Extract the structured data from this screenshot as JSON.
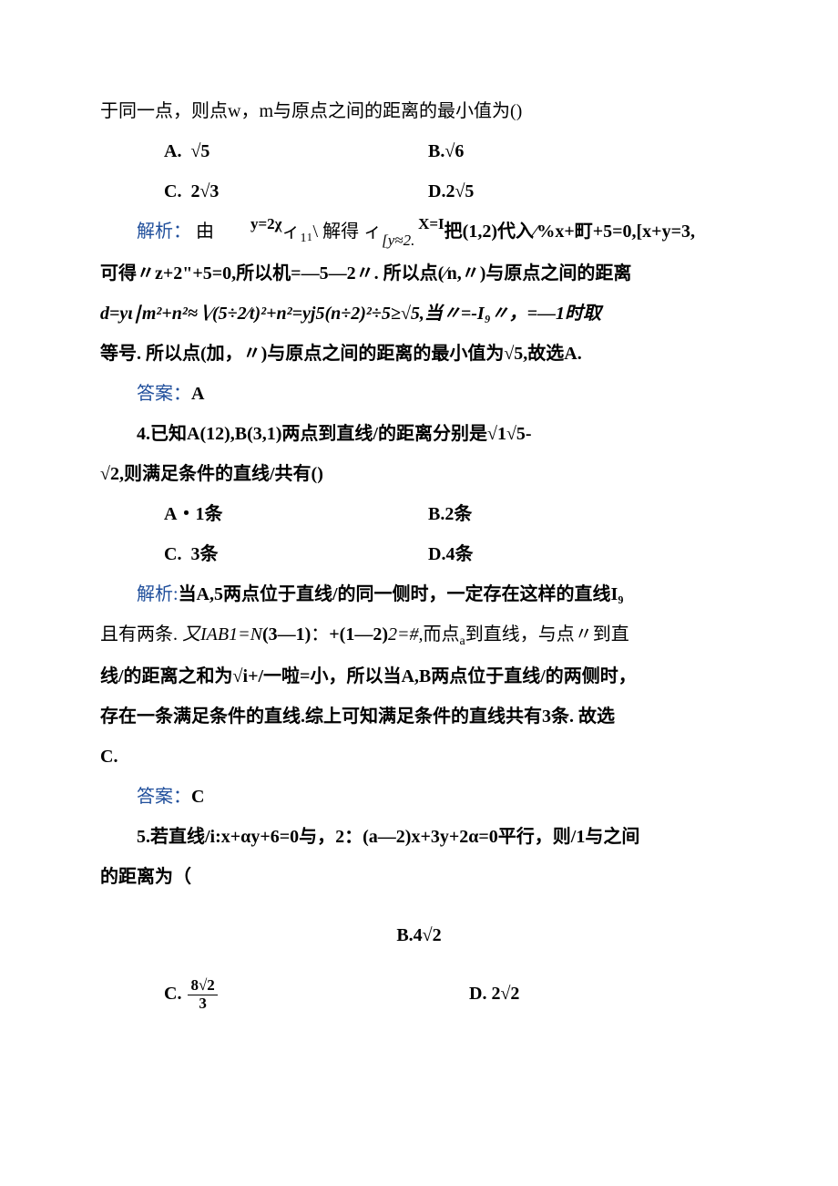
{
  "colors": {
    "text": "#000000",
    "accent": "#1f4e9b",
    "background": "#ffffff"
  },
  "typography": {
    "base_font_family": "SimSun",
    "base_font_size_pt": 15,
    "line_height": 2.2
  },
  "intro_line": "于同一点，则点w，m与原点之间的距离的最小值为()",
  "q_intro_options": {
    "A": "√5",
    "B": "√6",
    "C": "2√3",
    "D": "2√5"
  },
  "jiexi_label": "解析：",
  "daan_label": "答案：",
  "q3": {
    "jiexi_inline_top": {
      "left": "y=2χ",
      "right": "X=I"
    },
    "jiexi_line1_a": "由",
    "jiexi_line1_b": "ィ",
    "jiexi_line1_c": "₁\\ 解得 ィ",
    "jiexi_line1_d": "[y≈2.",
    "jiexi_line1_e": "把(1,2)代入∕%x+町+5=0,[x+y=3,",
    "jiexi_line2": "可得〃z+2\"+5=0,所以机=—5—2〃. 所以点(∕n,〃)与原点之间的距离",
    "jiexi_line3": "d=yι∣m²+n²≈∖∕(5÷2∕t)²+n²=yj5(n÷2)²÷5≥√5,当〃=-I₉〃，=—1时取",
    "jiexi_line4": "等号. 所以点(加，〃)与原点之间的距离的最小值为√5,故选A.",
    "answer": "A"
  },
  "q4": {
    "stem1": "4.已知A(12),B(3,1)两点到直线/的距离分别是√1√5-",
    "stem2": "√2,则满足条件的直线/共有()",
    "options": {
      "A": "1条",
      "B": "2条",
      "C": "3条",
      "D": "4条"
    },
    "jiexi1": "当A,5两点位于直线/的同一侧时，一定存在这样的直线I₉",
    "jiexi2": "且有两条. 又IAB1=N(3—1)：+(1—2)2=#,而点ₐ到直线，与点〃到直",
    "jiexi3": "线/的距离之和为√i+/一啦=小，所以当A,B两点位于直线/的两侧时，",
    "jiexi4": "存在一条满足条件的直线.综上可知满足条件的直线共有3条. 故选",
    "jiexi5": "C.",
    "answer": "C"
  },
  "q5": {
    "stem1": "5.若直线/i:x+αy+6=0与，2：(a—2)x+3y+2α=0平行，则/1与之间",
    "stem2": "的距离为（",
    "optB": "B.4√2",
    "optC_label": "C.",
    "optC_frac": {
      "num": "8√2",
      "den": "3"
    },
    "optD": "D. 2√2"
  }
}
